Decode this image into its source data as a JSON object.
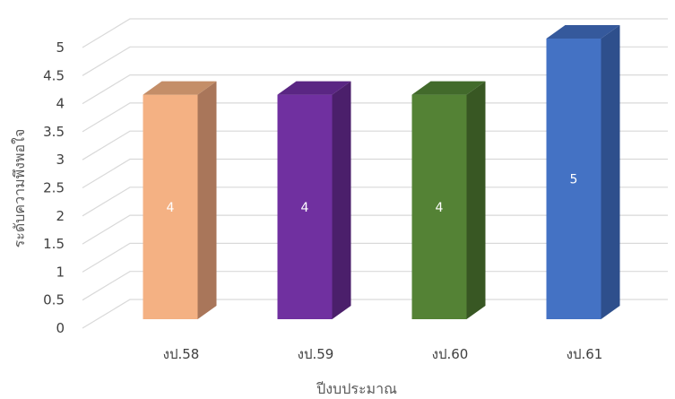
{
  "chart_data": {
    "type": "bar",
    "style": "3d-column",
    "categories": [
      "งป.58",
      "งป.59",
      "งป.60",
      "งป.61"
    ],
    "values": [
      4,
      4,
      4,
      5
    ],
    "data_labels": [
      "4",
      "4",
      "4",
      "5"
    ],
    "colors": [
      "#F4B183",
      "#7030A0",
      "#548235",
      "#4472C4"
    ],
    "side_colors": [
      "#A9765A",
      "#4B1F6B",
      "#385723",
      "#2E4F8C"
    ],
    "top_colors": [
      "#C48E68",
      "#5A2683",
      "#426A2B",
      "#35599C"
    ],
    "xlabel": "ปีงบประมาณ",
    "ylabel": "ระดับความพึงพอใจ",
    "yticks": [
      "0",
      "0.5",
      "1",
      "1.5",
      "2",
      "2.5",
      "3",
      "3.5",
      "4",
      "4.5",
      "5"
    ],
    "ylim": [
      0,
      5
    ],
    "grid": true,
    "gridline_color": "#D9D9D9"
  }
}
